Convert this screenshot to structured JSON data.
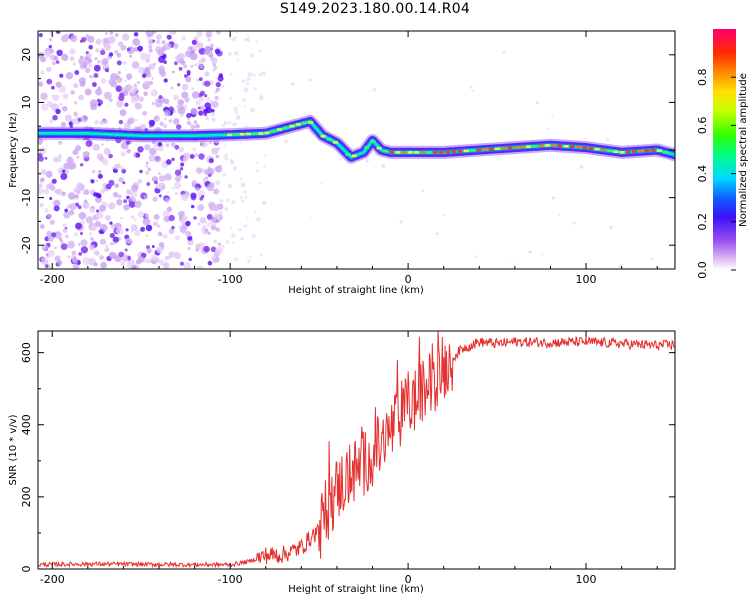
{
  "title": "S149.2023.180.00.14.R04",
  "colors": {
    "snr_line": "#e53030",
    "frame": "#000000"
  },
  "chart_data": [
    {
      "type": "heatmap",
      "xlabel": "Height of straight line (km)",
      "ylabel": "Frequency (Hz)",
      "xlim": [
        -208,
        150
      ],
      "ylim": [
        -25,
        25
      ],
      "xticks": [
        -200,
        -100,
        0,
        100
      ],
      "yticks": [
        -20,
        -10,
        0,
        10,
        20
      ],
      "colorbar": {
        "label": "Normalized spectral amplitude",
        "ticks": [
          0.0,
          0.2,
          0.4,
          0.6,
          0.8
        ],
        "range": [
          0,
          1
        ]
      },
      "ridge": {
        "x": [
          -208,
          -180,
          -150,
          -120,
          -100,
          -80,
          -60,
          -55,
          -48,
          -40,
          -32,
          -25,
          -20,
          -15,
          -10,
          0,
          20,
          40,
          60,
          80,
          100,
          120,
          140,
          150
        ],
        "freq": [
          3.5,
          3.5,
          3,
          3,
          3.2,
          3.5,
          5.5,
          6,
          3,
          1.5,
          -1.5,
          -0.5,
          2,
          0,
          -0.5,
          -0.5,
          -0.5,
          0,
          0.5,
          1,
          0.5,
          -0.5,
          0,
          -1
        ]
      }
    },
    {
      "type": "line",
      "xlabel": "Height of straight line (km)",
      "ylabel": "SNR (10 * v/v)",
      "xlim": [
        -208,
        150
      ],
      "ylim": [
        0,
        660
      ],
      "xticks": [
        -200,
        -100,
        0,
        100
      ],
      "yticks": [
        0,
        200,
        400,
        600
      ],
      "series": [
        {
          "x": [
            -208,
            -180,
            -150,
            -120,
            -100,
            -90,
            -80,
            -70,
            -60,
            -50,
            -45,
            -40,
            -35,
            -30,
            -25,
            -20,
            -15,
            -10,
            -5,
            0,
            5,
            10,
            15,
            20,
            25,
            30,
            40,
            50,
            60,
            80,
            100,
            120,
            140,
            150
          ],
          "values": [
            12,
            14,
            13,
            12,
            12,
            20,
            38,
            40,
            60,
            110,
            170,
            220,
            250,
            270,
            290,
            320,
            340,
            380,
            420,
            460,
            470,
            500,
            530,
            560,
            585,
            610,
            630,
            625,
            630,
            628,
            630,
            625,
            620,
            622
          ]
        }
      ]
    }
  ]
}
